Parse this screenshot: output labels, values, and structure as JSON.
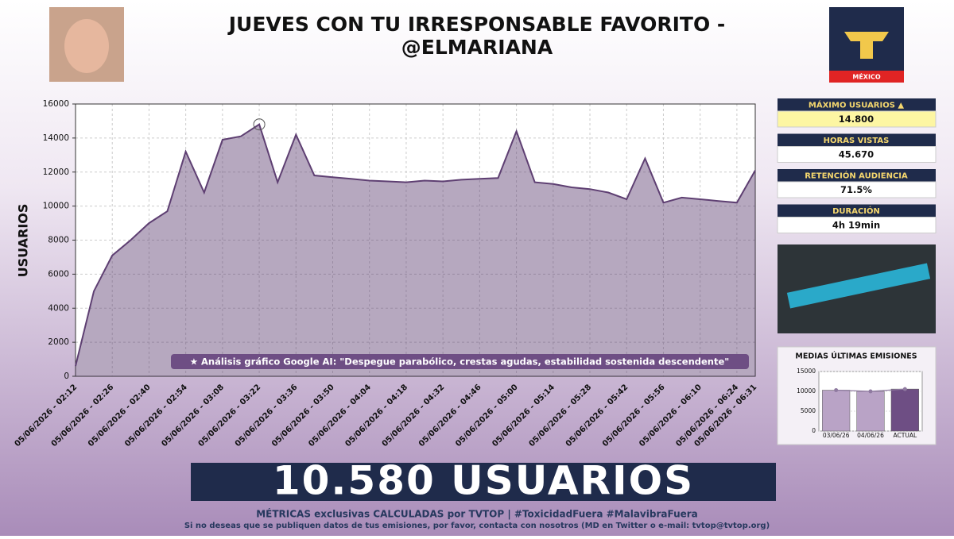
{
  "header": {
    "title_line1": "JUEVES CON TU IRRESPONSABLE FAVORITO -",
    "title_line2": "@ELMARIANA",
    "logo_text": "MÉXICO"
  },
  "stats": [
    {
      "label": "MÁXIMO USUARIOS ▲",
      "value": "14.800"
    },
    {
      "label": "HORAS VISTAS",
      "value": "45.670"
    },
    {
      "label": "RETENCIÓN AUDIENCIA",
      "value": "71.5%"
    },
    {
      "label": "DURACIÓN",
      "value": "4h 19min"
    }
  ],
  "banner": "10.580 USUARIOS",
  "footer": {
    "line1": "MÉTRICAS exclusivas CALCULADAS por TVTOP | #ToxicidadFuera #MalavibraFuera",
    "line2": "Si no deseas que se publiquen datos de tus emisiones, por favor, contacta con nosotros (MD en Twitter o e-mail: tvtop@tvtop.org)"
  },
  "chart_data": [
    {
      "type": "area",
      "y_label": "USUARIOS",
      "annotation": "★ Análisis gráfico Google AI: \"Despegue parabólico, crestas agudas, estabilidad sostenida descendente\"",
      "categories": [
        "05/06/2026 - 02:12",
        null,
        "05/06/2026 - 02:26",
        null,
        "05/06/2026 - 02:40",
        null,
        "05/06/2026 - 02:54",
        null,
        "05/06/2026 - 03:08",
        null,
        "05/06/2026 - 03:22",
        null,
        "05/06/2026 - 03:36",
        null,
        "05/06/2026 - 03:50",
        null,
        "05/06/2026 - 04:04",
        null,
        "05/06/2026 - 04:18",
        null,
        "05/06/2026 - 04:32",
        null,
        "05/06/2026 - 04:46",
        null,
        "05/06/2026 - 05:00",
        null,
        "05/06/2026 - 05:14",
        null,
        "05/06/2026 - 05:28",
        null,
        "05/06/2026 - 05:42",
        null,
        "05/06/2026 - 05:56",
        null,
        "05/06/2026 - 06:10",
        null,
        "05/06/2026 - 06:24",
        "05/06/2026 - 06:31"
      ],
      "values": [
        600,
        5000,
        7100,
        8000,
        9000,
        9700,
        13200,
        10800,
        13900,
        14100,
        14800,
        11400,
        14200,
        11800,
        11700,
        11600,
        11500,
        11450,
        11400,
        11500,
        11450,
        11550,
        11600,
        11650,
        14400,
        11400,
        11300,
        11100,
        11000,
        10800,
        10400,
        12800,
        10200,
        10500,
        10400,
        10300,
        10200,
        12100
      ],
      "color": "#5e3f72",
      "ylim": [
        0,
        16000
      ],
      "yticks": [
        0,
        2000,
        4000,
        6000,
        8000,
        10000,
        12000,
        14000,
        16000
      ],
      "grid": true
    },
    {
      "type": "bar",
      "title": "MEDIAS ÚLTIMAS EMISIONES",
      "categories": [
        "03/06/26",
        "04/06/26",
        "ACTUAL"
      ],
      "values": [
        10300,
        10000,
        10580
      ],
      "colors": [
        "#b9a3c6",
        "#b9a3c6",
        "#6e4e84"
      ],
      "ylim": [
        0,
        15000
      ],
      "yticks": [
        0,
        5000,
        10000,
        15000
      ],
      "grid": true
    }
  ]
}
